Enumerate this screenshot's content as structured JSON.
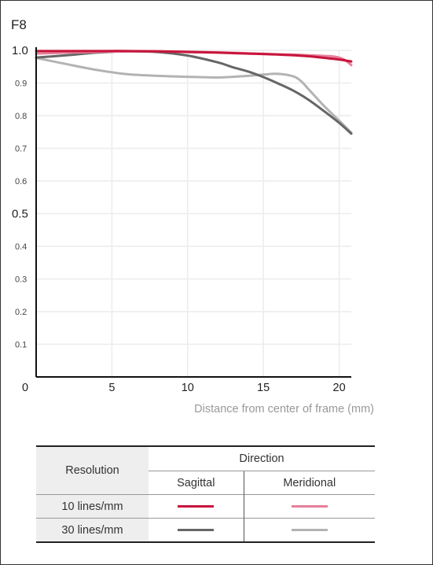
{
  "chart_data": {
    "type": "line",
    "title": "F8",
    "xlabel": "Distance from center of frame (mm)",
    "ylabel": "",
    "xlim": [
      0,
      20.8
    ],
    "ylim": [
      0,
      1.0
    ],
    "x_ticks": [
      {
        "value": 0,
        "label": "0"
      },
      {
        "value": 5,
        "label": "5"
      },
      {
        "value": 10,
        "label": "10"
      },
      {
        "value": 15,
        "label": "15"
      },
      {
        "value": 20,
        "label": "20"
      }
    ],
    "y_ticks": [
      {
        "value": 1.0,
        "label": "1.0",
        "major": true
      },
      {
        "value": 0.9,
        "label": "0.9",
        "major": false
      },
      {
        "value": 0.8,
        "label": "0.8",
        "major": false
      },
      {
        "value": 0.7,
        "label": "0.7",
        "major": false
      },
      {
        "value": 0.6,
        "label": "0.6",
        "major": false
      },
      {
        "value": 0.5,
        "label": "0.5",
        "major": true
      },
      {
        "value": 0.4,
        "label": "0.4",
        "major": false
      },
      {
        "value": 0.3,
        "label": "0.3",
        "major": false
      },
      {
        "value": 0.2,
        "label": "0.2",
        "major": false
      },
      {
        "value": 0.1,
        "label": "0.1",
        "major": false
      }
    ],
    "grid": true,
    "series": [
      {
        "key": "s10",
        "color": "#c8143c",
        "width": 3,
        "x": [
          0,
          2,
          4,
          6,
          8,
          10,
          12,
          14,
          16,
          18,
          19,
          20,
          20.8
        ],
        "y": [
          0.998,
          0.998,
          0.998,
          0.998,
          0.997,
          0.995,
          0.993,
          0.99,
          0.987,
          0.982,
          0.977,
          0.972,
          0.966
        ]
      },
      {
        "key": "m10",
        "color": "#e5809a",
        "width": 3,
        "x": [
          0,
          2,
          4,
          6,
          8,
          10,
          12,
          14,
          16,
          17,
          18,
          19,
          19.5,
          20,
          20.4,
          20.8
        ],
        "y": [
          0.99,
          0.993,
          0.995,
          0.997,
          0.997,
          0.996,
          0.994,
          0.991,
          0.988,
          0.987,
          0.985,
          0.983,
          0.982,
          0.978,
          0.97,
          0.955
        ]
      },
      {
        "key": "s30",
        "color": "#666666",
        "width": 3,
        "x": [
          0,
          2,
          4,
          6,
          8,
          10,
          12,
          13,
          14,
          15,
          16,
          17,
          18,
          19,
          20,
          20.8
        ],
        "y": [
          0.978,
          0.985,
          0.993,
          0.997,
          0.995,
          0.984,
          0.963,
          0.948,
          0.935,
          0.918,
          0.898,
          0.876,
          0.848,
          0.814,
          0.778,
          0.745
        ]
      },
      {
        "key": "m30",
        "color": "#b3b3b3",
        "width": 3,
        "x": [
          0,
          2,
          4,
          6,
          8,
          10,
          12,
          13,
          14,
          15,
          16,
          17,
          17.5,
          18,
          19,
          20,
          20.8
        ],
        "y": [
          0.977,
          0.958,
          0.94,
          0.927,
          0.922,
          0.919,
          0.917,
          0.919,
          0.922,
          0.926,
          0.928,
          0.92,
          0.905,
          0.88,
          0.83,
          0.785,
          0.748
        ]
      }
    ]
  },
  "legend": {
    "resolution_header": "Resolution",
    "direction_header": "Direction",
    "sagittal_header": "Sagittal",
    "meridional_header": "Meridional",
    "rows": [
      {
        "label": "10 lines/mm",
        "sagittal_color": "#c8143c",
        "meridional_color": "#e5809a"
      },
      {
        "label": "30 lines/mm",
        "sagittal_color": "#666666",
        "meridional_color": "#b3b3b3"
      }
    ]
  }
}
